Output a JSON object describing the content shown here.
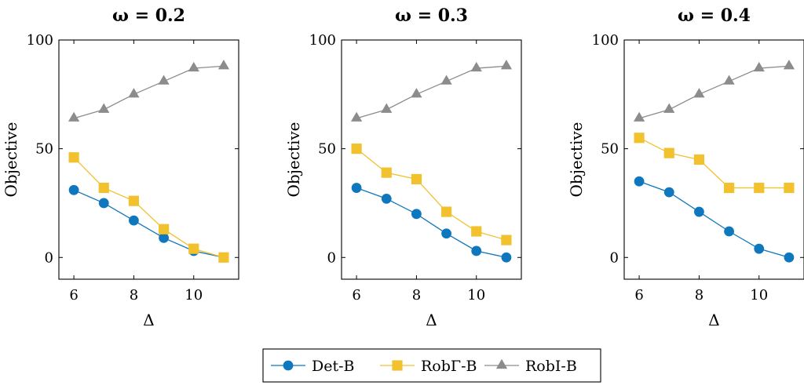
{
  "colors": {
    "Det-B": "#0f77be",
    "RobΓ-B": "#f2c12e",
    "RobI-B": "#8c8c8c"
  },
  "legend": [
    "Det-B",
    "RobΓ-B",
    "RobI-B"
  ],
  "chart_data": [
    {
      "type": "line",
      "title": "ω = 0.2",
      "xlabel": "Δ",
      "ylabel": "Objective",
      "xlim": [
        5.5,
        11.5
      ],
      "ylim": [
        -10,
        100
      ],
      "xticks": [
        6,
        8,
        10
      ],
      "yticks": [
        0,
        50,
        100
      ],
      "x": [
        6,
        7,
        8,
        9,
        10,
        11
      ],
      "series": [
        {
          "name": "Det-B",
          "marker": "circle",
          "values": [
            31,
            25,
            17,
            9,
            3,
            0
          ]
        },
        {
          "name": "RobΓ-B",
          "marker": "square",
          "values": [
            46,
            32,
            26,
            13,
            4,
            0
          ]
        },
        {
          "name": "RobI-B",
          "marker": "triangle",
          "values": [
            64,
            68,
            75,
            81,
            87,
            88
          ]
        }
      ]
    },
    {
      "type": "line",
      "title": "ω = 0.3",
      "xlabel": "Δ",
      "ylabel": "Objective",
      "xlim": [
        5.5,
        11.5
      ],
      "ylim": [
        -10,
        100
      ],
      "xticks": [
        6,
        8,
        10
      ],
      "yticks": [
        0,
        50,
        100
      ],
      "x": [
        6,
        7,
        8,
        9,
        10,
        11
      ],
      "series": [
        {
          "name": "Det-B",
          "marker": "circle",
          "values": [
            32,
            27,
            20,
            11,
            3,
            0
          ]
        },
        {
          "name": "RobΓ-B",
          "marker": "square",
          "values": [
            50,
            39,
            36,
            21,
            12,
            8
          ]
        },
        {
          "name": "RobI-B",
          "marker": "triangle",
          "values": [
            64,
            68,
            75,
            81,
            87,
            88
          ]
        }
      ]
    },
    {
      "type": "line",
      "title": "ω = 0.4",
      "xlabel": "Δ",
      "ylabel": "Objective",
      "xlim": [
        5.5,
        11.5
      ],
      "ylim": [
        -10,
        100
      ],
      "xticks": [
        6,
        8,
        10
      ],
      "yticks": [
        0,
        50,
        100
      ],
      "x": [
        6,
        7,
        8,
        9,
        10,
        11
      ],
      "series": [
        {
          "name": "Det-B",
          "marker": "circle",
          "values": [
            35,
            30,
            21,
            12,
            4,
            0
          ]
        },
        {
          "name": "RobΓ-B",
          "marker": "square",
          "values": [
            55,
            48,
            45,
            32,
            32,
            32
          ]
        },
        {
          "name": "RobI-B",
          "marker": "triangle",
          "values": [
            64,
            68,
            75,
            81,
            87,
            88
          ]
        }
      ]
    }
  ]
}
